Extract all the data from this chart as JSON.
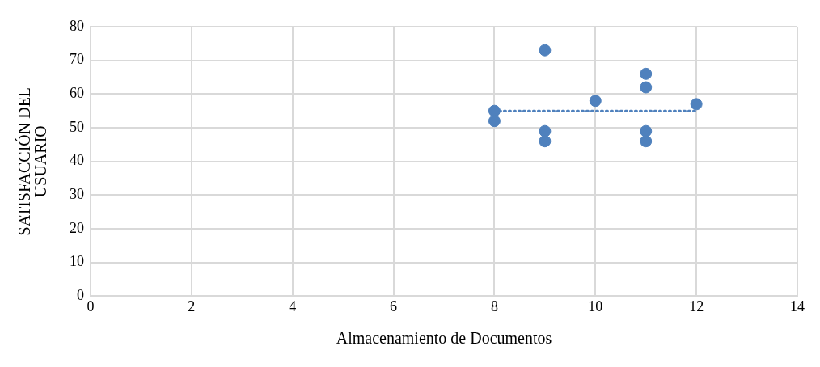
{
  "chart_data": {
    "type": "scatter",
    "xlabel": "Almacenamiento de Documentos",
    "ylabel": "SATISFACCIÓN DEL USUARIO",
    "xlim": [
      0,
      14
    ],
    "xticks": [
      0,
      2,
      4,
      6,
      8,
      10,
      12,
      14
    ],
    "ylim": [
      0,
      80
    ],
    "yticks": [
      0,
      10,
      20,
      30,
      40,
      50,
      60,
      70,
      80
    ],
    "grid": true,
    "legend": false,
    "marker": "circle",
    "series": [
      {
        "type": "scatter",
        "color": "#4f81bd",
        "x": [
          8,
          8,
          9,
          9,
          9,
          10,
          11,
          11,
          11,
          11,
          12
        ],
        "values": [
          55,
          52,
          73,
          49,
          46,
          58,
          66,
          62,
          49,
          46,
          57
        ]
      },
      {
        "type": "line",
        "color": "#4f81bd",
        "line_style": "dotted",
        "marker": "none",
        "x": [
          8,
          12
        ],
        "values": [
          55,
          55
        ]
      }
    ]
  }
}
